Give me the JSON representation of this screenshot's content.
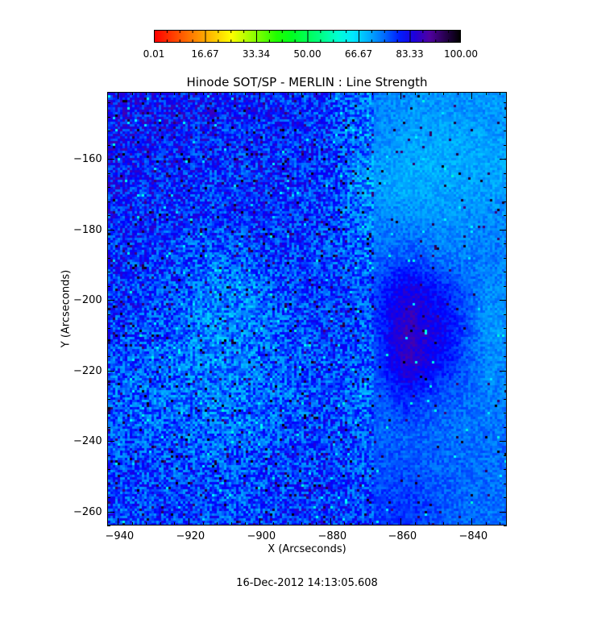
{
  "chart_data": {
    "type": "heatmap",
    "title": "Hinode SOT/SP - MERLIN : Line Strength",
    "xlabel": "X (Arcseconds)",
    "ylabel": "Y (Arcseconds)",
    "xlim": [
      -943,
      -830
    ],
    "ylim": [
      -264,
      -141
    ],
    "x_ticks": [
      -940,
      -920,
      -900,
      -880,
      -860,
      -840
    ],
    "y_ticks": [
      -160,
      -180,
      -200,
      -220,
      -240,
      -260
    ],
    "colorbar": {
      "range": [
        0.01,
        100.0
      ],
      "tick_labels": [
        "0.01",
        "16.67",
        "33.34",
        "50.00",
        "66.67",
        "83.33",
        "100.00"
      ],
      "colormap": "rainbow (red-yellow-green-cyan-blue-purple-black)",
      "placement": "top"
    },
    "approx_values_grid": {
      "x_centers": [
        -937,
        -926,
        -914,
        -903,
        -892,
        -880,
        -869,
        -858,
        -847,
        -835
      ],
      "y_centers": [
        -146,
        -156,
        -166,
        -177,
        -187,
        -197,
        -208,
        -218,
        -228,
        -238,
        -249,
        -259
      ],
      "values": [
        [
          82,
          82,
          81,
          80,
          80,
          79,
          74,
          72,
          72,
          72
        ],
        [
          82,
          81,
          80,
          79,
          80,
          79,
          73,
          71,
          70,
          71
        ],
        [
          81,
          80,
          79,
          80,
          80,
          78,
          72,
          70,
          71,
          71
        ],
        [
          80,
          80,
          79,
          80,
          79,
          78,
          74,
          73,
          72,
          73
        ],
        [
          80,
          79,
          76,
          77,
          79,
          78,
          75,
          77,
          74,
          74
        ],
        [
          79,
          78,
          74,
          73,
          78,
          79,
          77,
          85,
          80,
          73
        ],
        [
          78,
          77,
          73,
          74,
          77,
          79,
          76,
          88,
          82,
          72
        ],
        [
          77,
          76,
          73,
          75,
          76,
          78,
          76,
          87,
          80,
          73
        ],
        [
          76,
          75,
          74,
          75,
          76,
          78,
          75,
          80,
          76,
          74
        ],
        [
          77,
          76,
          75,
          76,
          77,
          79,
          76,
          76,
          75,
          75
        ],
        [
          78,
          78,
          77,
          77,
          78,
          79,
          77,
          77,
          76,
          75
        ],
        [
          78,
          79,
          78,
          77,
          79,
          80,
          78,
          79,
          76,
          75
        ]
      ]
    },
    "timestamp": "16-Dec-2012 14:13:05.608"
  }
}
